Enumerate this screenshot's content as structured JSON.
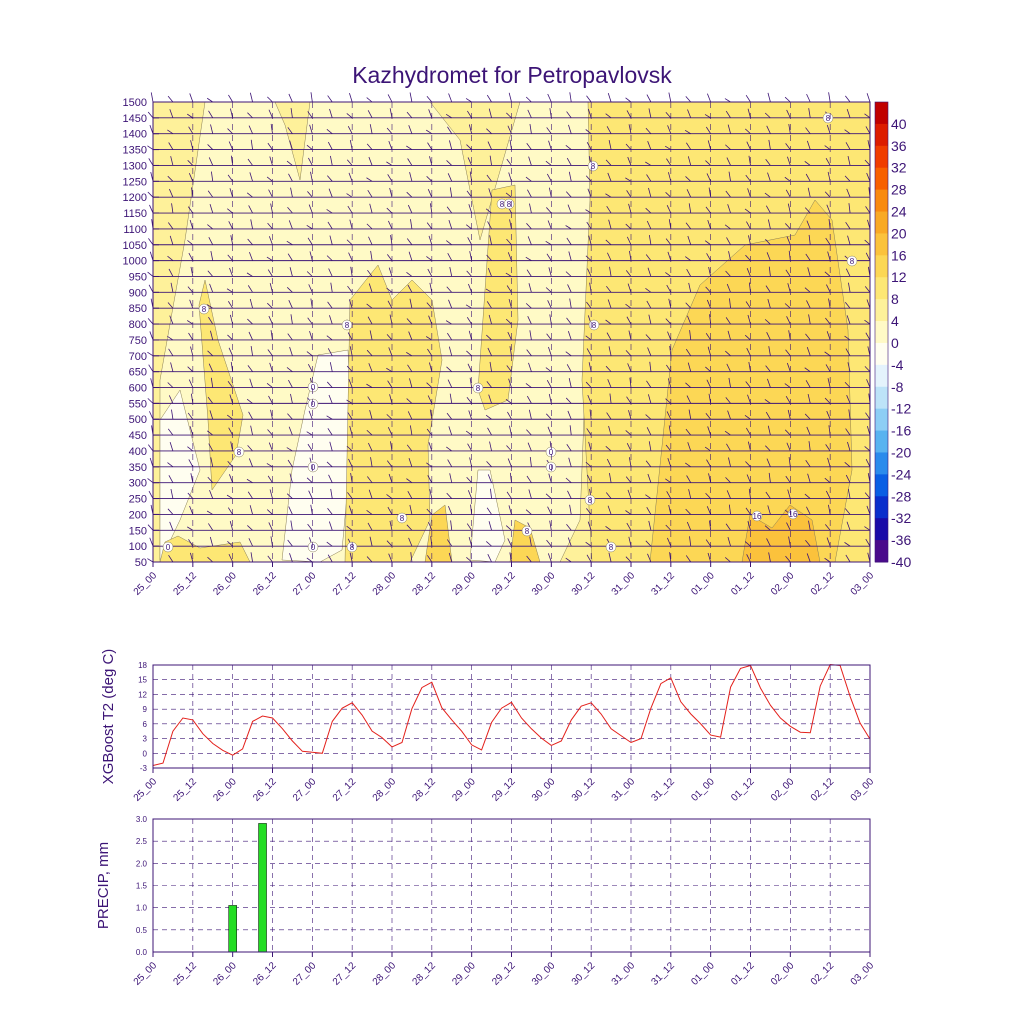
{
  "title": "Kazhydromet for Petropavlovsk",
  "time_labels": [
    "25_00",
    "25_12",
    "26_00",
    "26_12",
    "27_00",
    "27_12",
    "28_00",
    "28_12",
    "29_00",
    "29_12",
    "30_00",
    "30_12",
    "31_00",
    "31_12",
    "01_00",
    "01_12",
    "02_00",
    "02_12",
    "03_00"
  ],
  "colors": {
    "axis": "#3c1476",
    "line": "#e3211c",
    "bar": "#22dd22",
    "grid": "#3c1476"
  },
  "chart_data": [
    {
      "type": "heatmap",
      "title": "Kazhydromet for Petropavlovsk",
      "y_ticks": [
        50,
        100,
        150,
        200,
        250,
        300,
        350,
        400,
        450,
        500,
        550,
        600,
        650,
        700,
        750,
        800,
        850,
        900,
        950,
        1000,
        1050,
        1100,
        1150,
        1200,
        1250,
        1300,
        1350,
        1400,
        1450,
        1500
      ],
      "ylim": [
        50,
        1500
      ],
      "legend": {
        "labels": [
          "40",
          "36",
          "32",
          "28",
          "24",
          "20",
          "16",
          "12",
          "8",
          "4",
          "0",
          "-4",
          "-8",
          "-12",
          "-16",
          "-20",
          "-24",
          "-28",
          "-32",
          "-36",
          "-40"
        ],
        "colors": [
          "#c00000",
          "#dd1c00",
          "#f03c00",
          "#f86000",
          "#f98a10",
          "#f9a925",
          "#fbc23c",
          "#fcd755",
          "#fde774",
          "#fef19a",
          "#fffac6",
          "#fffef0",
          "#e4f3fc",
          "#bde3f8",
          "#8dcef5",
          "#59b3f0",
          "#2b8bec",
          "#0a5ee4",
          "#0a2ecc",
          "#1a0aa8",
          "#4a0a8c"
        ]
      },
      "contour_labels": [
        "0",
        "8",
        "8",
        "8",
        "8",
        "8",
        "8",
        "8",
        "8",
        "8",
        "8",
        "8",
        "8",
        "8",
        "8",
        "8",
        "0",
        "0",
        "0",
        "0",
        "0",
        "0",
        "16",
        "16"
      ]
    },
    {
      "type": "line",
      "ylabel": "XGBoost T2 (deg C)",
      "y_ticks": [
        -3,
        0,
        3,
        6,
        9,
        12,
        15,
        18
      ],
      "ylim": [
        -3,
        18
      ],
      "series": [
        {
          "x_hours": [
            0,
            3,
            6,
            9,
            12,
            15,
            18,
            21,
            24,
            27,
            30,
            33,
            36,
            39,
            42,
            45,
            48,
            51,
            54,
            57,
            60,
            63,
            66,
            69,
            72,
            75,
            78,
            81,
            84,
            87,
            90,
            93,
            96,
            99,
            102,
            105,
            108,
            111,
            114,
            117,
            120,
            123,
            126,
            129,
            132,
            135,
            138,
            141,
            144,
            147,
            150,
            153,
            156,
            159,
            162,
            165,
            168,
            171,
            174,
            177,
            180,
            183,
            186,
            189,
            192,
            195,
            198,
            201,
            204,
            207,
            210,
            213,
            216
          ],
          "values": [
            -2.5,
            -2,
            4.5,
            7.2,
            6.8,
            4,
            2,
            0.6,
            -0.4,
            0.9,
            6.5,
            7.6,
            7.2,
            5,
            2.5,
            0.4,
            0.2,
            0,
            6.5,
            9.2,
            10.3,
            7.8,
            4.5,
            3.2,
            1.3,
            2.2,
            9.1,
            13.4,
            14.5,
            9.3,
            6.8,
            4.5,
            1.7,
            0.7,
            6.3,
            9.2,
            10.4,
            7.2,
            5,
            3.1,
            1.6,
            2.5,
            6.8,
            9.6,
            10.3,
            8,
            5,
            3.6,
            2.2,
            3,
            9.2,
            14.2,
            15.4,
            10.5,
            8,
            6,
            3.7,
            3.3,
            13.5,
            17.3,
            17.9,
            13.3,
            9.8,
            7.2,
            5.5,
            4.3,
            4.2,
            13.7,
            18.1,
            17.9,
            11.6,
            6.2,
            2.9
          ]
        }
      ]
    },
    {
      "type": "bar",
      "ylabel": "PRECIP, mm",
      "y_ticks": [
        0.0,
        0.5,
        1.0,
        1.5,
        2.0,
        2.5,
        3.0
      ],
      "ylim": [
        0,
        3.0
      ],
      "bars": [
        {
          "x_hours": 24,
          "value": 1.05
        },
        {
          "x_hours": 33,
          "value": 2.9
        }
      ]
    }
  ]
}
